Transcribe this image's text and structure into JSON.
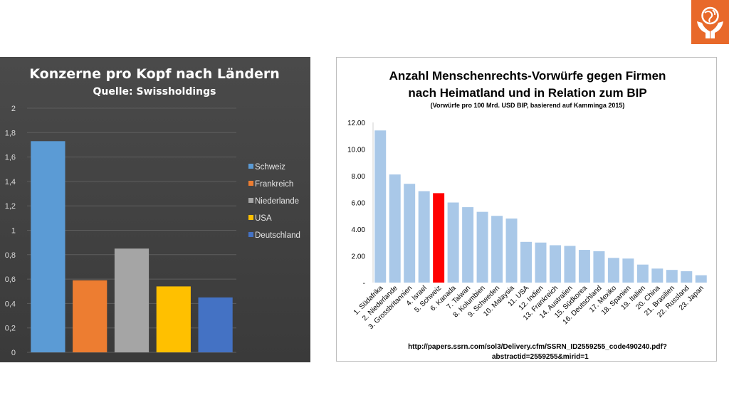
{
  "logo": {
    "icon": "globe-in-hands-icon",
    "color": "#e8692a"
  },
  "chart_data": [
    {
      "type": "bar",
      "title": "Konzerne pro Kopf nach Ländern",
      "subtitle": "Quelle: Swissholdings",
      "ylim": [
        0,
        2
      ],
      "yticks": [
        "0",
        "0,2",
        "0,4",
        "0,6",
        "0,8",
        "1",
        "1,2",
        "1,4",
        "1,6",
        "1,8",
        "2"
      ],
      "grid": true,
      "legend_position": "right",
      "series": [
        {
          "name": "Schweiz",
          "value": 1.73,
          "color": "#5b9bd5"
        },
        {
          "name": "Frankreich",
          "value": 0.59,
          "color": "#ed7d31"
        },
        {
          "name": "Niederlande",
          "value": 0.85,
          "color": "#a5a5a5"
        },
        {
          "name": "USA",
          "value": 0.54,
          "color": "#ffc000"
        },
        {
          "name": "Deutschland",
          "value": 0.45,
          "color": "#4472c4"
        }
      ]
    },
    {
      "type": "bar",
      "title": "Anzahl Menschenrechts-Vorwürfe gegen Firmen",
      "title_line2": "nach Heimatland und in Relation zum BIP",
      "subtitle": "(Vorwürfe pro 100 Mrd. USD BIP, basierend auf Kamminga 2015)",
      "source_line1": "http://papers.ssrn.com/sol3/Delivery.cfm/SSRN_ID2559255_code490240.pdf?",
      "source_line2": "abstractid=2559255&mirid=1",
      "ylim": [
        0,
        12
      ],
      "yticks": [
        "-",
        "2.00",
        "4.00",
        "6.00",
        "8.00",
        "10.00",
        "12.00"
      ],
      "grid": false,
      "bar_color": "#a9c8e8",
      "highlight_color": "#ff0000",
      "highlight_index": 4,
      "categories": [
        "1. Südafrika",
        "2. Niederlande",
        "3. Grossbritannien",
        "4. Israel",
        "5. Schweiz",
        "6. Kanada",
        "7. Taiwan",
        "8. Kolumbien",
        "9. Schweden",
        "10. Malaysia",
        "11. USA",
        "12. Indien",
        "13. Frankreich",
        "14. Australien",
        "15. Südkorea",
        "16. Deutschland",
        "17. Mexiko",
        "18. Spanien",
        "19. Italien",
        "20. China",
        "21. Brasilien",
        "22. Russland",
        "23. Japan"
      ],
      "values": [
        11.4,
        8.1,
        7.4,
        6.85,
        6.7,
        6.0,
        5.65,
        5.3,
        5.0,
        4.8,
        3.05,
        3.0,
        2.8,
        2.75,
        2.45,
        2.35,
        1.85,
        1.8,
        1.35,
        1.05,
        0.95,
        0.85,
        0.55
      ]
    }
  ]
}
